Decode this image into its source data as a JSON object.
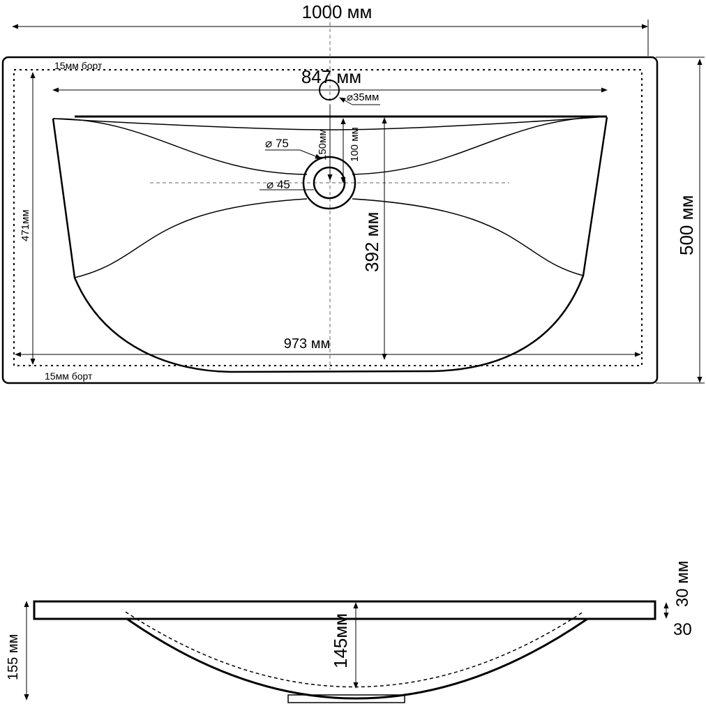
{
  "top_view": {
    "overall_width": "1000 мм",
    "overall_depth": "500 мм",
    "rim_top": "15мм борт",
    "rim_bottom": "15мм борт",
    "faucet_span": "847 мм",
    "faucet_hole": "35мм",
    "drain_outer": "75",
    "drain_inner": "45",
    "dim_150": "150мм",
    "dim_100": "100 мм",
    "bowl_depth": "392 мм",
    "inner_width": "973 мм",
    "inner_depth": "471мм"
  },
  "side_view": {
    "total_height": "155 мм",
    "bowl_height": "145мм",
    "slab_thickness": "30 мм",
    "slab_thickness_alt": "30"
  }
}
